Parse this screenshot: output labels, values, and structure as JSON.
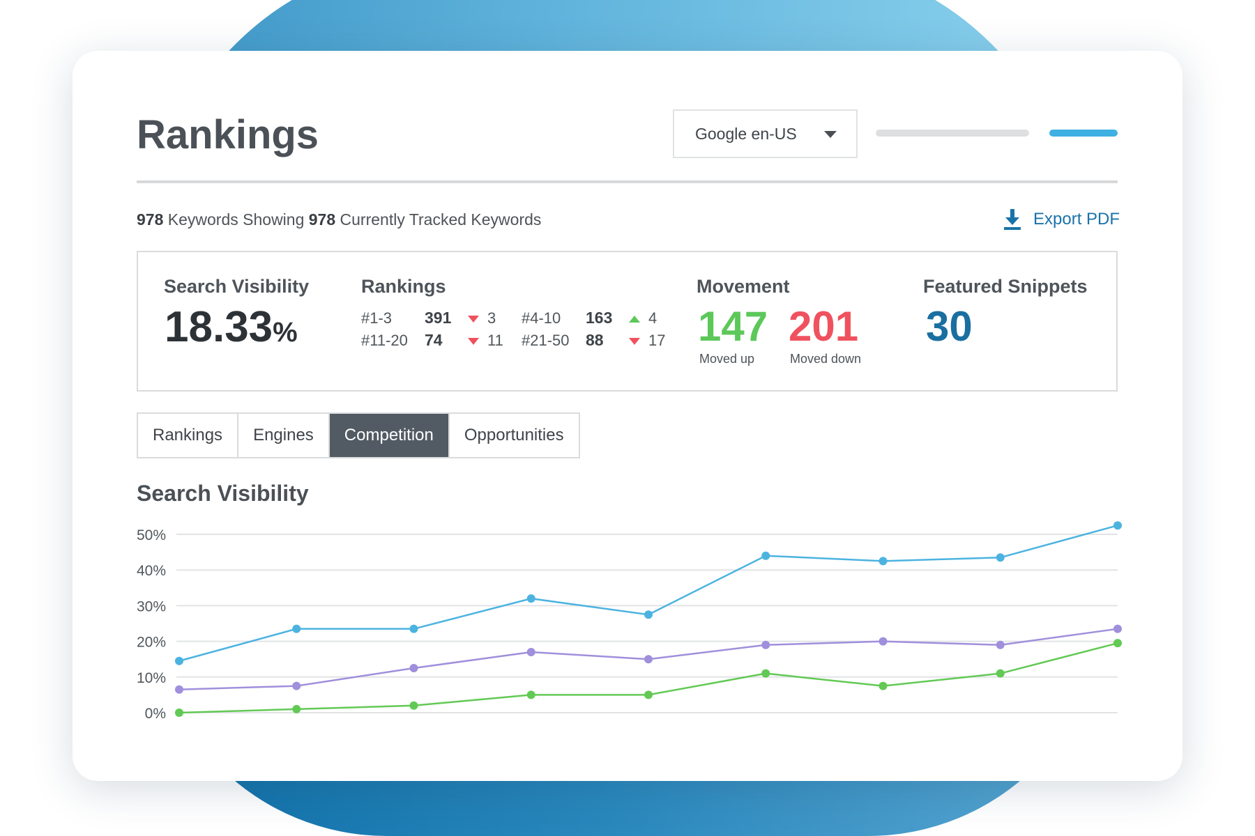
{
  "header": {
    "title": "Rankings",
    "engine_select": {
      "value": "Google en-US"
    }
  },
  "summary": {
    "count_a": "978",
    "text_a": "Keywords Showing",
    "count_b": "978",
    "text_b": "Currently Tracked Keywords",
    "export_label": "Export PDF"
  },
  "stats": {
    "visibility": {
      "label": "Search Visibility",
      "value": "18.33",
      "unit": "%"
    },
    "rankings": {
      "label": "Rankings",
      "rows": [
        {
          "range": "#1-3",
          "count": "391",
          "direction": "down",
          "change": "3"
        },
        {
          "range": "#4-10",
          "count": "163",
          "direction": "up",
          "change": "4"
        },
        {
          "range": "#11-20",
          "count": "74",
          "direction": "down",
          "change": "11"
        },
        {
          "range": "#21-50",
          "count": "88",
          "direction": "down",
          "change": "17"
        }
      ]
    },
    "movement": {
      "label": "Movement",
      "up_value": "147",
      "up_label": "Moved up",
      "down_value": "201",
      "down_label": "Moved down"
    },
    "snippets": {
      "label": "Featured Snippets",
      "value": "30"
    }
  },
  "colors": {
    "up": "#5cc85a",
    "down": "#f0515e",
    "snippets": "#1a6fa0",
    "accent": "#3fb0e2"
  },
  "tabs": [
    {
      "label": "Rankings",
      "active": false
    },
    {
      "label": "Engines",
      "active": false
    },
    {
      "label": "Competition",
      "active": true
    },
    {
      "label": "Opportunities",
      "active": false
    }
  ],
  "chart_data": {
    "type": "line",
    "title": "Search Visibility",
    "xlabel": "",
    "ylabel": "",
    "y_ticks": [
      "0%",
      "10%",
      "20%",
      "30%",
      "40%",
      "50%"
    ],
    "ylim": [
      0,
      50
    ],
    "grid": true,
    "x": [
      1,
      2,
      3,
      4,
      5,
      6,
      7,
      8,
      9
    ],
    "series": [
      {
        "color": "#4cb3e0",
        "values": [
          14.5,
          23.5,
          23.5,
          32,
          27.5,
          44,
          42.5,
          43.5,
          52.5
        ]
      },
      {
        "color": "#a08fdc",
        "values": [
          6.5,
          7.5,
          12.5,
          17,
          15,
          19,
          20,
          19,
          23.5
        ]
      },
      {
        "color": "#62c954",
        "values": [
          0,
          1,
          2,
          5,
          5,
          11,
          7.5,
          11,
          19.5
        ]
      }
    ]
  }
}
